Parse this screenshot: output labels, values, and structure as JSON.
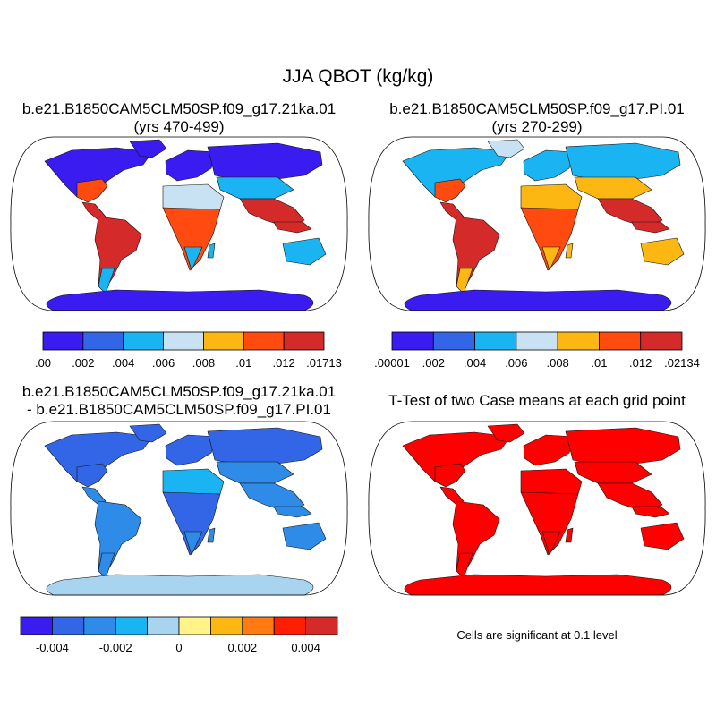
{
  "figure": {
    "title": "JJA QBOT (kg/kg)"
  },
  "panels": [
    {
      "id": "case1",
      "title_line1": "b.e21.B1850CAM5CLM50SP.f09_g17.21ka.01",
      "title_line2": "(yrs 470-499)",
      "colors": {
        "ocean": "#ffffff",
        "antarctica": "#3a1cf0",
        "greenland": "#3a1cf0",
        "north": "#3a1cf0",
        "mid": "#1ab4f2",
        "warm": "#ff4a10",
        "tropic": "#d42a2a",
        "dry": "#c8e2f4"
      },
      "colorbar": {
        "colors": [
          "#3a1cf0",
          "#3366e6",
          "#1ab4f2",
          "#c8e2f4",
          "#fdb713",
          "#ff4a10",
          "#d42a2a"
        ],
        "labels": [
          ".00",
          ".002",
          ".004",
          ".006",
          ".008",
          ".01",
          ".012",
          ".01713"
        ]
      }
    },
    {
      "id": "case2",
      "title_line1": "b.e21.B1850CAM5CLM50SP.f09_g17.PI.01",
      "title_line2": "(yrs 270-299)",
      "colors": {
        "ocean": "#ffffff",
        "antarctica": "#3a1cf0",
        "greenland": "#c8e2f4",
        "north": "#1ab4f2",
        "mid": "#fdb713",
        "warm": "#ff4a10",
        "tropic": "#d42a2a",
        "dry": "#fdb713"
      },
      "colorbar": {
        "colors": [
          "#3a1cf0",
          "#3366e6",
          "#1ab4f2",
          "#c8e2f4",
          "#fdb713",
          "#ff4a10",
          "#d42a2a"
        ],
        "labels": [
          ".00001",
          ".002",
          ".004",
          ".006",
          ".008",
          ".01",
          ".012",
          ".02134"
        ]
      }
    },
    {
      "id": "difference",
      "title_line1": "b.e21.B1850CAM5CLM50SP.f09_g17.21ka.01",
      "title_line2": "- b.e21.B1850CAM5CLM50SP.f09_g17.PI.01",
      "colors": {
        "ocean": "#ffffff",
        "antarctica": "#a9d4f0",
        "greenland": "#3366e6",
        "north": "#3366e6",
        "mid": "#2e8be8",
        "warm": "#3366e6",
        "tropic": "#2e8be8",
        "dry": "#1ab4f2"
      },
      "colorbar": {
        "colors": [
          "#3a1cf0",
          "#3366e6",
          "#2e8be8",
          "#1ab4f2",
          "#a9d4f0",
          "#fff38a",
          "#fdb713",
          "#ff7a10",
          "#ff1e00",
          "#d42a2a"
        ],
        "labels": [
          "-0.004",
          "-0.002",
          "0",
          "0.002",
          "0.004"
        ],
        "label_boundaries": [
          1,
          3,
          5,
          7,
          9
        ]
      }
    },
    {
      "id": "ttest",
      "title_line1": "T-Test of two Case means at each grid point",
      "colors": {
        "ocean": "#ffffff",
        "antarctica": "#ff0000",
        "greenland": "#ff0000",
        "north": "#ff0000",
        "mid": "#ff0000",
        "warm": "#ff0000",
        "tropic": "#ff0000",
        "dry": "#ff0000"
      },
      "note": "Cells are significant at 0.1 level"
    }
  ]
}
